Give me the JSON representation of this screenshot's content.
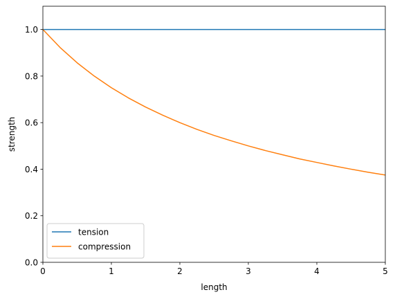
{
  "chart_data": {
    "type": "line",
    "title": "",
    "xlabel": "length",
    "ylabel": "strength",
    "xlim": [
      0,
      5
    ],
    "ylim": [
      0,
      1.1
    ],
    "grid": false,
    "legend_position": "lower-left",
    "x_ticks": [
      "0",
      "1",
      "2",
      "3",
      "4",
      "5"
    ],
    "y_ticks": [
      "0.0",
      "0.2",
      "0.4",
      "0.6",
      "0.8",
      "1.0"
    ],
    "x": [
      0,
      0.25,
      0.5,
      0.75,
      1,
      1.25,
      1.5,
      1.75,
      2,
      2.25,
      2.5,
      2.75,
      3,
      3.25,
      3.5,
      3.75,
      4,
      4.25,
      4.5,
      4.75,
      5
    ],
    "series": [
      {
        "name": "tension",
        "color": "#1f77b4",
        "values": [
          1,
          1,
          1,
          1,
          1,
          1,
          1,
          1,
          1,
          1,
          1,
          1,
          1,
          1,
          1,
          1,
          1,
          1,
          1,
          1,
          1
        ]
      },
      {
        "name": "compression",
        "color": "#ff7f0e",
        "values": [
          1.0,
          0.923,
          0.857,
          0.8,
          0.75,
          0.706,
          0.667,
          0.632,
          0.6,
          0.571,
          0.545,
          0.522,
          0.5,
          0.48,
          0.462,
          0.444,
          0.429,
          0.414,
          0.4,
          0.387,
          0.375
        ]
      }
    ]
  }
}
